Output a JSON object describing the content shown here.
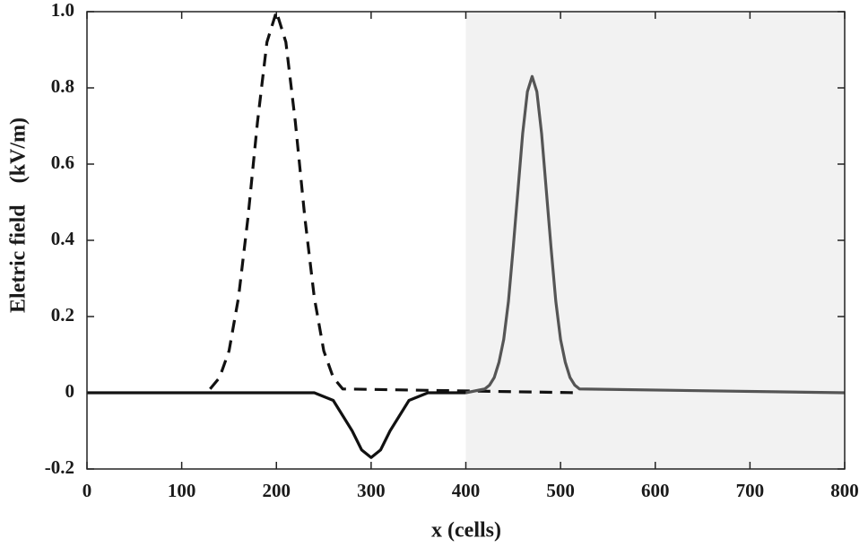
{
  "chart_data": {
    "type": "line",
    "x_label": "x (cells)",
    "y_label": "Eletric field    (kV/m)",
    "xlim": [
      0,
      800
    ],
    "xticks": [
      0,
      100,
      200,
      300,
      400,
      500,
      600,
      700,
      800
    ],
    "ylim": [
      -0.2,
      1
    ],
    "yticks": [
      -0.2,
      0,
      0.2,
      0.4,
      0.6,
      {
        "value": 1,
        "label": "1.0"
      },
      0.8
    ],
    "shaded_region": {
      "xlim": [
        400,
        800
      ],
      "color": "#f2f2f2"
    },
    "series": [
      {
        "color": "#111111",
        "dash": true,
        "x": [
          130,
          140,
          150,
          160,
          170,
          180,
          190,
          200,
          210,
          220,
          230,
          240,
          250,
          260,
          270,
          520
        ],
        "values": [
          0.01,
          0.04,
          0.11,
          0.25,
          0.46,
          0.71,
          0.92,
          1.0,
          0.92,
          0.71,
          0.46,
          0.25,
          0.11,
          0.04,
          0.01,
          0
        ]
      },
      {
        "color": "#111111",
        "dash": false,
        "x": [
          0,
          240,
          250,
          260,
          270,
          280,
          290,
          300,
          310,
          320,
          330,
          340,
          350,
          360,
          400
        ],
        "values": [
          0,
          0,
          -0.01,
          -0.02,
          -0.06,
          -0.1,
          -0.15,
          -0.17,
          -0.15,
          -0.1,
          -0.06,
          -0.02,
          -0.01,
          0,
          0
        ]
      },
      {
        "color": "#555555",
        "dash": false,
        "x": [
          400,
          420,
          425,
          430,
          435,
          440,
          445,
          450,
          455,
          460,
          465,
          470,
          475,
          480,
          485,
          490,
          495,
          500,
          505,
          510,
          515,
          520,
          800
        ],
        "values": [
          0,
          0.01,
          0.02,
          0.04,
          0.08,
          0.14,
          0.24,
          0.38,
          0.53,
          0.68,
          0.79,
          0.83,
          0.79,
          0.68,
          0.53,
          0.38,
          0.24,
          0.14,
          0.08,
          0.04,
          0.02,
          0.01,
          0
        ]
      }
    ]
  }
}
